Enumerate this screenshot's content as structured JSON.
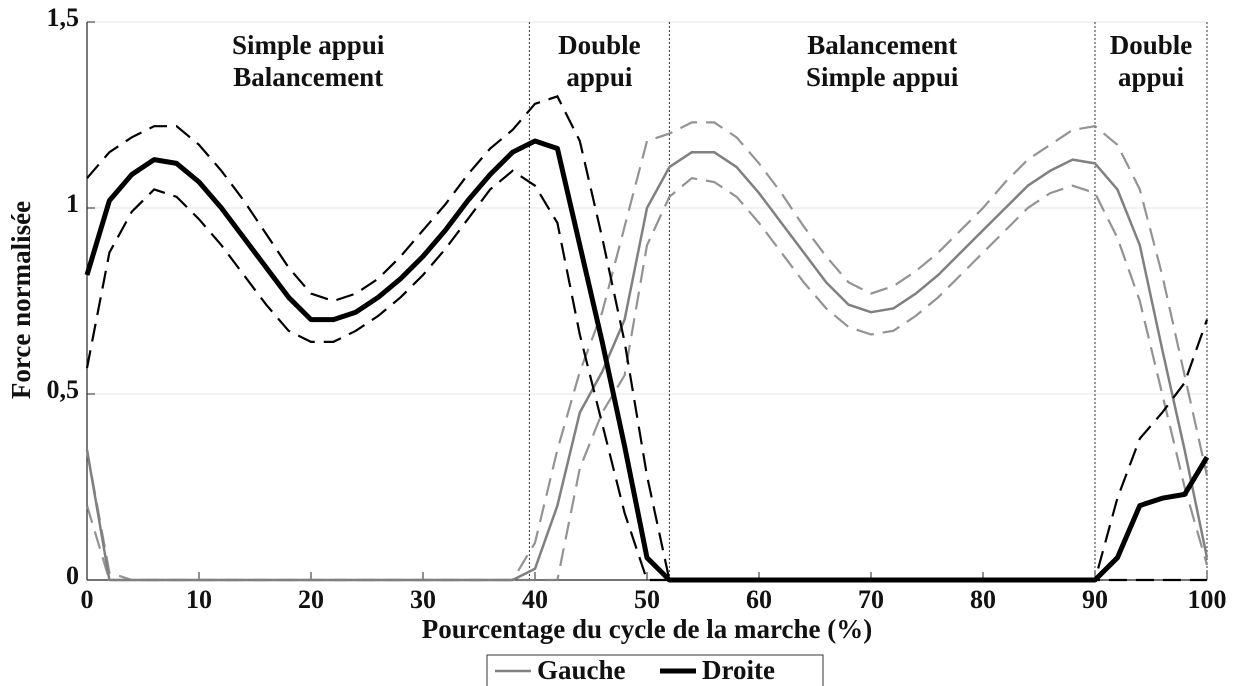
{
  "chart_data": {
    "type": "line",
    "xlabel": "Pourcentage du cycle de la marche (%)",
    "ylabel": "Force normalisée",
    "x": [
      0,
      2,
      4,
      6,
      8,
      10,
      12,
      14,
      16,
      18,
      20,
      22,
      24,
      26,
      28,
      30,
      32,
      34,
      36,
      38,
      40,
      42,
      44,
      46,
      48,
      50,
      52,
      54,
      56,
      58,
      60,
      62,
      64,
      66,
      68,
      70,
      72,
      74,
      76,
      78,
      80,
      82,
      84,
      86,
      88,
      90,
      92,
      94,
      96,
      98,
      100
    ],
    "series": [
      {
        "name": "Gauche",
        "color": "#808080",
        "values": [
          0.35,
          0,
          0,
          0,
          0,
          0,
          0,
          0,
          0,
          0,
          0,
          0,
          0,
          0,
          0,
          0,
          0,
          0,
          0,
          0,
          0.03,
          0.2,
          0.45,
          0.56,
          0.7,
          1.0,
          1.11,
          1.15,
          1.15,
          1.11,
          1.04,
          0.96,
          0.88,
          0.8,
          0.74,
          0.72,
          0.73,
          0.77,
          0.82,
          0.88,
          0.94,
          1.0,
          1.06,
          1.1,
          1.13,
          1.12,
          1.05,
          0.9,
          0.62,
          0.35,
          0.06
        ],
        "upper": [
          0.35,
          0.02,
          0,
          0,
          0,
          0,
          0,
          0,
          0,
          0,
          0,
          0,
          0,
          0,
          0,
          0,
          0,
          0,
          0,
          0,
          0.1,
          0.35,
          0.56,
          0.72,
          0.95,
          1.18,
          1.2,
          1.23,
          1.23,
          1.19,
          1.12,
          1.04,
          0.95,
          0.87,
          0.8,
          0.77,
          0.79,
          0.83,
          0.88,
          0.94,
          1.0,
          1.07,
          1.13,
          1.17,
          1.21,
          1.22,
          1.17,
          1.05,
          0.82,
          0.55,
          0.28
        ],
        "lower": [
          0.2,
          0,
          0,
          0,
          0,
          0,
          0,
          0,
          0,
          0,
          0,
          0,
          0,
          0,
          0,
          0,
          0,
          0,
          0,
          0,
          0,
          0,
          0.3,
          0.45,
          0.55,
          0.9,
          1.03,
          1.08,
          1.07,
          1.03,
          0.96,
          0.88,
          0.8,
          0.73,
          0.68,
          0.66,
          0.67,
          0.71,
          0.76,
          0.82,
          0.88,
          0.94,
          1.0,
          1.04,
          1.06,
          1.04,
          0.92,
          0.75,
          0.5,
          0.25,
          0.04
        ]
      },
      {
        "name": "Droite",
        "color": "#000000",
        "values": [
          0.82,
          1.02,
          1.09,
          1.13,
          1.12,
          1.07,
          1.0,
          0.92,
          0.84,
          0.76,
          0.7,
          0.7,
          0.72,
          0.76,
          0.81,
          0.87,
          0.94,
          1.02,
          1.09,
          1.15,
          1.18,
          1.16,
          0.9,
          0.64,
          0.36,
          0.06,
          0,
          0,
          0,
          0,
          0,
          0,
          0,
          0,
          0,
          0,
          0,
          0,
          0,
          0,
          0,
          0,
          0,
          0,
          0,
          0,
          0.06,
          0.2,
          0.22,
          0.23,
          0.33
        ],
        "upper": [
          1.08,
          1.15,
          1.19,
          1.22,
          1.22,
          1.17,
          1.1,
          1.02,
          0.93,
          0.84,
          0.77,
          0.75,
          0.77,
          0.81,
          0.87,
          0.94,
          1.01,
          1.09,
          1.16,
          1.21,
          1.28,
          1.3,
          1.18,
          0.92,
          0.64,
          0.28,
          0,
          0,
          0,
          0,
          0,
          0,
          0,
          0,
          0,
          0,
          0,
          0,
          0,
          0,
          0,
          0,
          0,
          0,
          0,
          0,
          0.22,
          0.38,
          0.45,
          0.53,
          0.7
        ],
        "lower": [
          0.57,
          0.88,
          0.99,
          1.05,
          1.03,
          0.97,
          0.9,
          0.82,
          0.74,
          0.67,
          0.64,
          0.64,
          0.67,
          0.71,
          0.76,
          0.82,
          0.89,
          0.97,
          1.05,
          1.1,
          1.06,
          0.96,
          0.66,
          0.42,
          0.18,
          0,
          0,
          0,
          0,
          0,
          0,
          0,
          0,
          0,
          0,
          0,
          0,
          0,
          0,
          0,
          0,
          0,
          0,
          0,
          0,
          0,
          0,
          0,
          0,
          0,
          0
        ]
      }
    ],
    "phase_lines": [
      39.5,
      52,
      90,
      100
    ],
    "phase_labels": [
      [
        "Simple appui",
        "Balancement"
      ],
      [
        "Double",
        "appui"
      ],
      [
        "Balancement",
        "Simple appui"
      ],
      [
        "Double",
        "appui"
      ]
    ],
    "xlim": [
      0,
      100
    ],
    "xticks": [
      0,
      10,
      20,
      30,
      40,
      50,
      60,
      70,
      80,
      90,
      100
    ],
    "ylim": [
      0,
      1.5
    ],
    "yticks": [
      0,
      {
        "value": 0.5,
        "label": "0,5"
      },
      1,
      {
        "value": 1.5,
        "label": "1,5"
      }
    ],
    "grid": true
  }
}
